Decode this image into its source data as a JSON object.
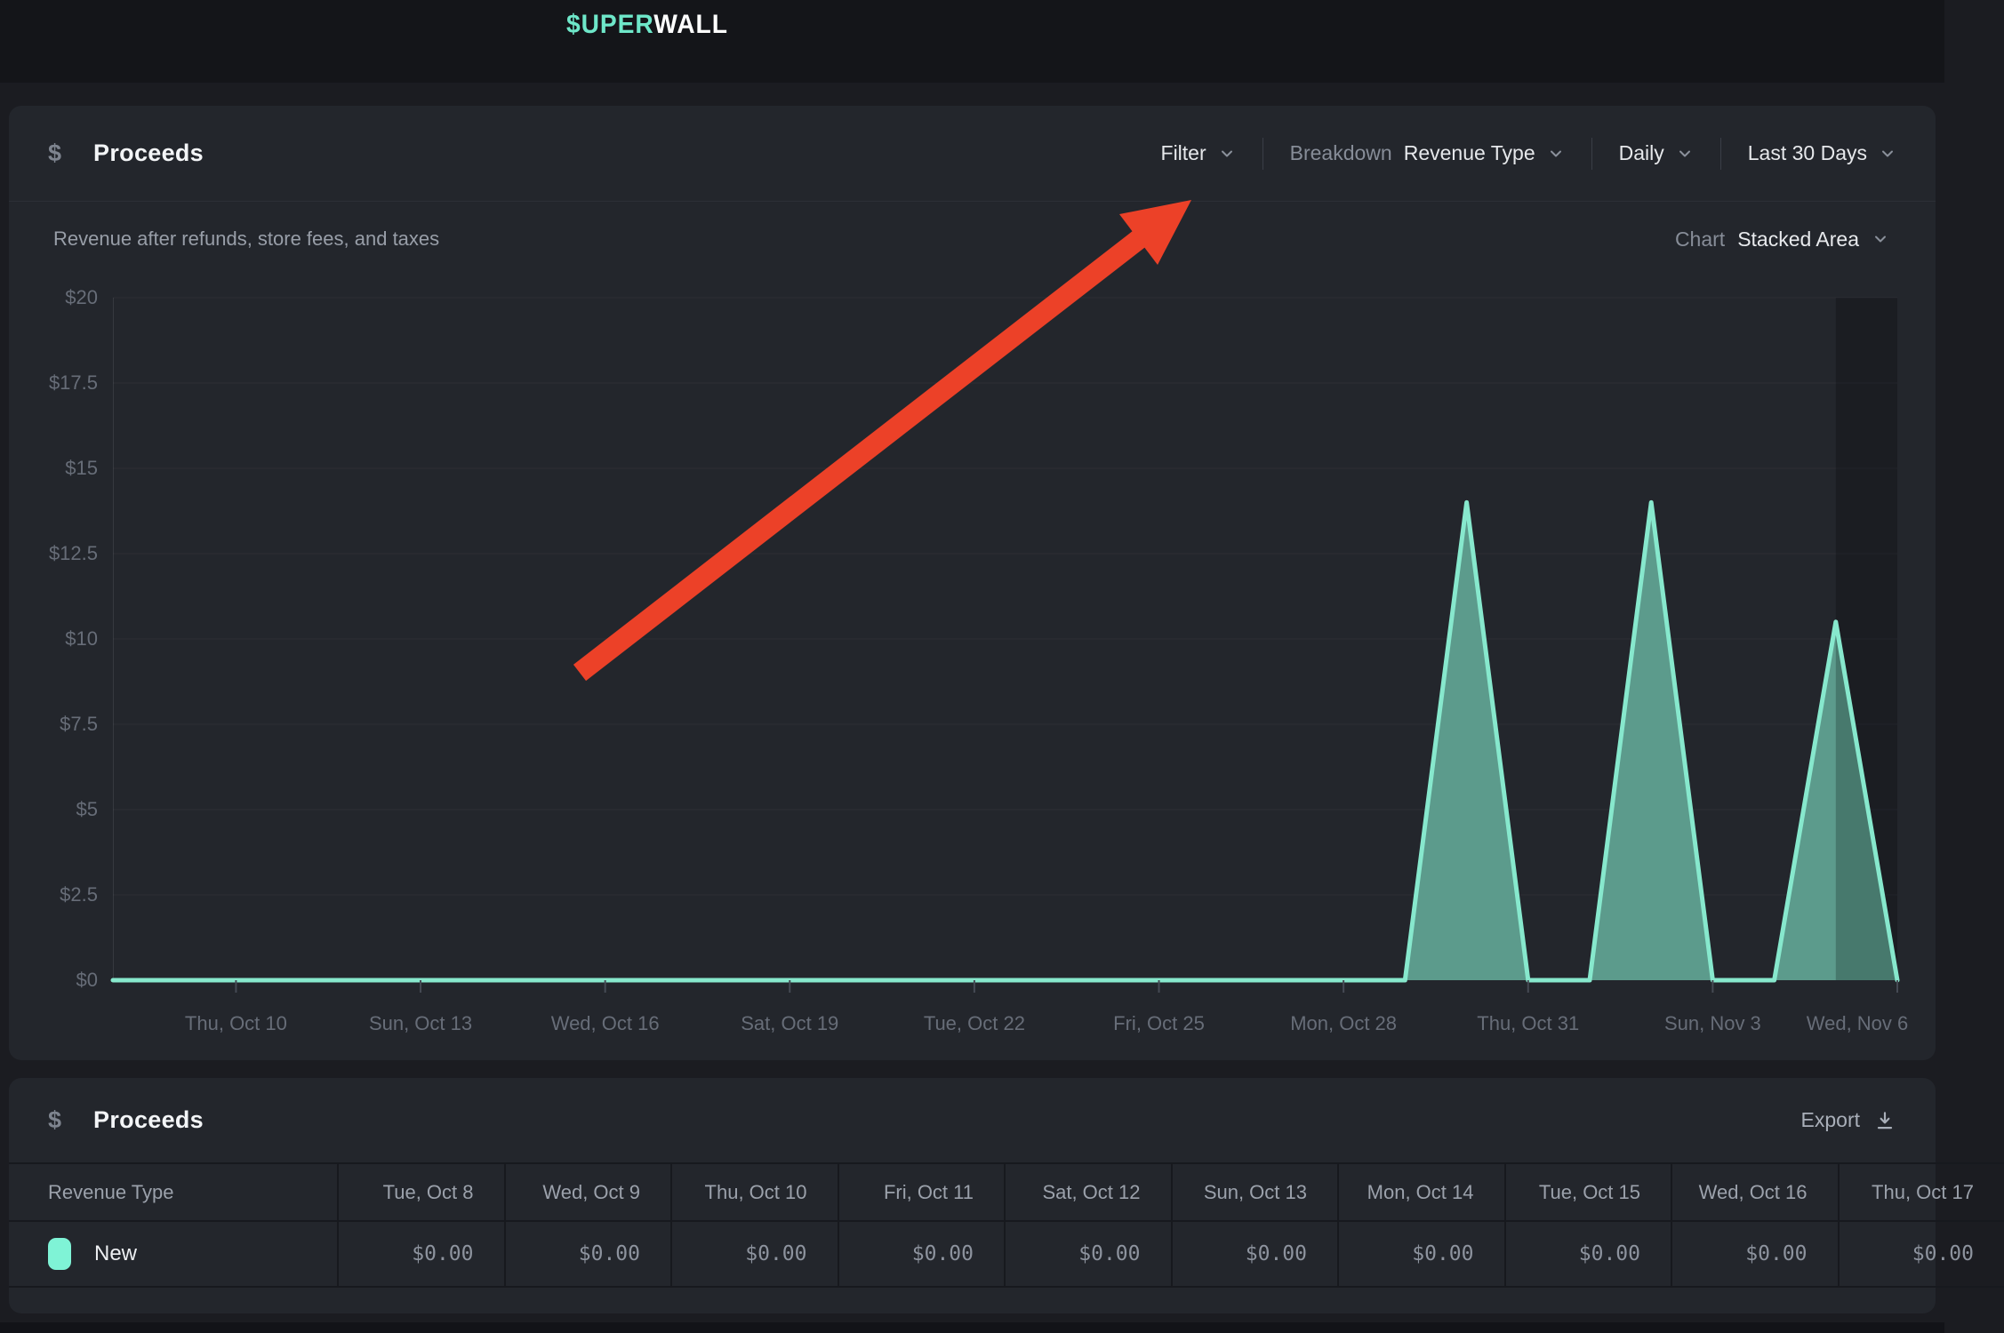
{
  "topbar": {
    "logo_accent": "$UPER",
    "logo_rest": "WALL"
  },
  "chart_panel": {
    "dollar_icon": "$",
    "title": "Proceeds",
    "controls": {
      "filter": "Filter",
      "breakdown_label": "Breakdown",
      "breakdown_value": "Revenue Type",
      "granularity": "Daily",
      "range": "Last 30 Days"
    },
    "subtitle": "Revenue after refunds, store fees, and taxes",
    "chart_label": "Chart",
    "chart_type": "Stacked Area"
  },
  "chart_data": {
    "type": "area",
    "title": "Proceeds",
    "ylim": [
      0,
      20
    ],
    "yticks": [
      "$0",
      "$2.5",
      "$5",
      "$7.5",
      "$10",
      "$12.5",
      "$15",
      "$17.5",
      "$20"
    ],
    "x": [
      "Oct 8",
      "Oct 9",
      "Oct 10",
      "Oct 11",
      "Oct 12",
      "Oct 13",
      "Oct 14",
      "Oct 15",
      "Oct 16",
      "Oct 17",
      "Oct 18",
      "Oct 19",
      "Oct 20",
      "Oct 21",
      "Oct 22",
      "Oct 23",
      "Oct 24",
      "Oct 25",
      "Oct 26",
      "Oct 27",
      "Oct 28",
      "Oct 29",
      "Oct 30",
      "Oct 31",
      "Nov 1",
      "Nov 2",
      "Nov 3",
      "Nov 4",
      "Nov 5",
      "Nov 6"
    ],
    "series": [
      {
        "name": "New",
        "fill_color": "#5C9B8C",
        "stroke_color": "#87E8CD",
        "values": [
          0,
          0,
          0,
          0,
          0,
          0,
          0,
          0,
          0,
          0,
          0,
          0,
          0,
          0,
          0,
          0,
          0,
          0,
          0,
          0,
          0,
          0,
          14,
          0,
          0,
          14,
          0,
          0,
          10.5,
          0
        ]
      }
    ],
    "xticks": [
      {
        "i": 2,
        "label": "Thu, Oct 10"
      },
      {
        "i": 5,
        "label": "Sun, Oct 13"
      },
      {
        "i": 8,
        "label": "Wed, Oct 16"
      },
      {
        "i": 11,
        "label": "Sat, Oct 19"
      },
      {
        "i": 14,
        "label": "Tue, Oct 22"
      },
      {
        "i": 17,
        "label": "Fri, Oct 25"
      },
      {
        "i": 20,
        "label": "Mon, Oct 28"
      },
      {
        "i": 23,
        "label": "Thu, Oct 31"
      },
      {
        "i": 26,
        "label": "Sun, Nov 3"
      },
      {
        "i": 29,
        "label": "Wed, Nov 6"
      }
    ],
    "incomplete_from_index": 28,
    "grid": "horizontal",
    "legend_position": "none"
  },
  "annotation_arrow": {
    "color": "#EC4128",
    "tail": [
      652,
      757
    ],
    "head_base": [
      1281,
      269
    ],
    "tip": [
      1340,
      225
    ],
    "barb1": [
      1302,
      298
    ],
    "barb2": [
      1259,
      241
    ]
  },
  "table_panel": {
    "dollar_icon": "$",
    "title": "Proceeds",
    "export_label": "Export",
    "first_column_header": "Revenue Type",
    "columns": [
      "Tue, Oct 8",
      "Wed, Oct 9",
      "Thu, Oct 10",
      "Fri, Oct 11",
      "Sat, Oct 12",
      "Sun, Oct 13",
      "Mon, Oct 14",
      "Tue, Oct 15",
      "Wed, Oct 16",
      "Thu, Oct 17"
    ],
    "rows": [
      {
        "label": "New",
        "swatch_color": "#7FF3D6",
        "values": [
          "$0.00",
          "$0.00",
          "$0.00",
          "$0.00",
          "$0.00",
          "$0.00",
          "$0.00",
          "$0.00",
          "$0.00",
          "$0.00"
        ]
      }
    ]
  },
  "colors": {
    "page_bg": "#1B1C21",
    "topbar_bg": "#141519",
    "panel_bg": "#23262C",
    "accent_mint": "#6EE7C9",
    "area_fill": "#5C9B8C",
    "area_stroke": "#87E8CD",
    "arrow_red": "#EC4128",
    "grid_line": "rgba(255,255,255,0.045)"
  }
}
